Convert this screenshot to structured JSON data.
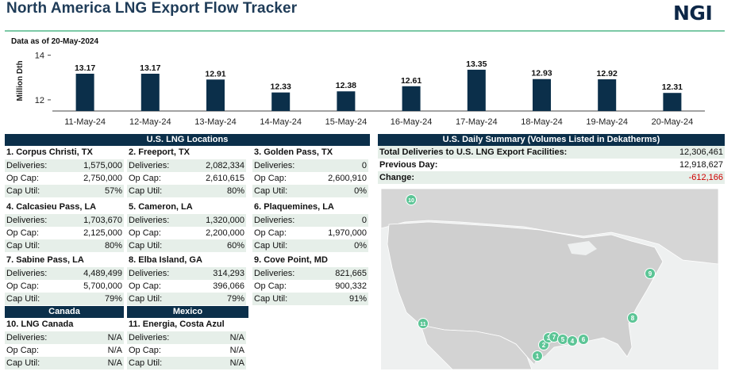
{
  "header": {
    "title": "North America LNG Export Flow Tracker",
    "logo": "NGI",
    "as_of": "Data as of 20-May-2024"
  },
  "chart_data": {
    "type": "bar",
    "ylabel": "Million Dth",
    "ylim": [
      11.5,
      14.2
    ],
    "yticks": [
      12,
      14
    ],
    "categories": [
      "11-May-24",
      "12-May-24",
      "13-May-24",
      "14-May-24",
      "15-May-24",
      "16-May-24",
      "17-May-24",
      "18-May-24",
      "19-May-24",
      "20-May-24"
    ],
    "values": [
      13.17,
      13.17,
      12.91,
      12.33,
      12.38,
      12.61,
      13.35,
      12.93,
      12.92,
      12.31
    ],
    "labels": [
      "13.17",
      "13.17",
      "12.91",
      "12.33",
      "12.38",
      "12.61",
      "13.35",
      "12.93",
      "12.92",
      "12.31"
    ],
    "bar_color": "#0b2f4a"
  },
  "us_section_title": "U.S. LNG Locations",
  "row_labels": {
    "deliveries": "Deliveries:",
    "op_cap": "Op Cap:",
    "cap_util": "Cap Util:"
  },
  "locations": [
    {
      "name": "1. Corpus Christi, TX",
      "deliveries": "1,575,000",
      "op_cap": "2,750,000",
      "cap_util": "57%"
    },
    {
      "name": "2. Freeport, TX",
      "deliveries": "2,082,334",
      "op_cap": "2,610,615",
      "cap_util": "80%"
    },
    {
      "name": "3. Golden Pass, TX",
      "deliveries": "0",
      "op_cap": "2,600,910",
      "cap_util": "0%"
    },
    {
      "name": "4. Calcasieu Pass, LA",
      "deliveries": "1,703,670",
      "op_cap": "2,125,000",
      "cap_util": "80%"
    },
    {
      "name": "5. Cameron, LA",
      "deliveries": "1,320,000",
      "op_cap": "2,200,000",
      "cap_util": "60%"
    },
    {
      "name": "6. Plaquemines, LA",
      "deliveries": "0",
      "op_cap": "1,970,000",
      "cap_util": "0%"
    },
    {
      "name": "7. Sabine Pass, LA",
      "deliveries": "4,489,499",
      "op_cap": "5,700,000",
      "cap_util": "79%"
    },
    {
      "name": "8. Elba Island, GA",
      "deliveries": "314,293",
      "op_cap": "396,066",
      "cap_util": "79%"
    },
    {
      "name": "9. Cove Point, MD",
      "deliveries": "821,665",
      "op_cap": "900,332",
      "cap_util": "91%"
    },
    {
      "name": "10. LNG Canada",
      "deliveries": "N/A",
      "op_cap": "N/A",
      "cap_util": "N/A"
    },
    {
      "name": "11. Energia, Costa Azul",
      "deliveries": "N/A",
      "op_cap": "N/A",
      "cap_util": "N/A"
    }
  ],
  "canada_title": "Canada",
  "mexico_title": "Mexico",
  "summary": {
    "title": "U.S. Daily Summary (Volumes Listed in Dekatherms)",
    "rows": [
      {
        "label": "Total Deliveries to U.S. LNG Export Facilities:",
        "value": "12,306,461"
      },
      {
        "label": "Previous Day:",
        "value": "12,918,627"
      },
      {
        "label": "Change:",
        "value": "-612,166"
      }
    ]
  },
  "map": {
    "marker_color": "#5cc596",
    "markers": [
      {
        "label": "1"
      },
      {
        "label": "2"
      },
      {
        "label": "3"
      },
      {
        "label": "7"
      },
      {
        "label": "5"
      },
      {
        "label": "4"
      },
      {
        "label": "6"
      },
      {
        "label": "8"
      },
      {
        "label": "9"
      },
      {
        "label": "10"
      },
      {
        "label": "11"
      }
    ]
  }
}
